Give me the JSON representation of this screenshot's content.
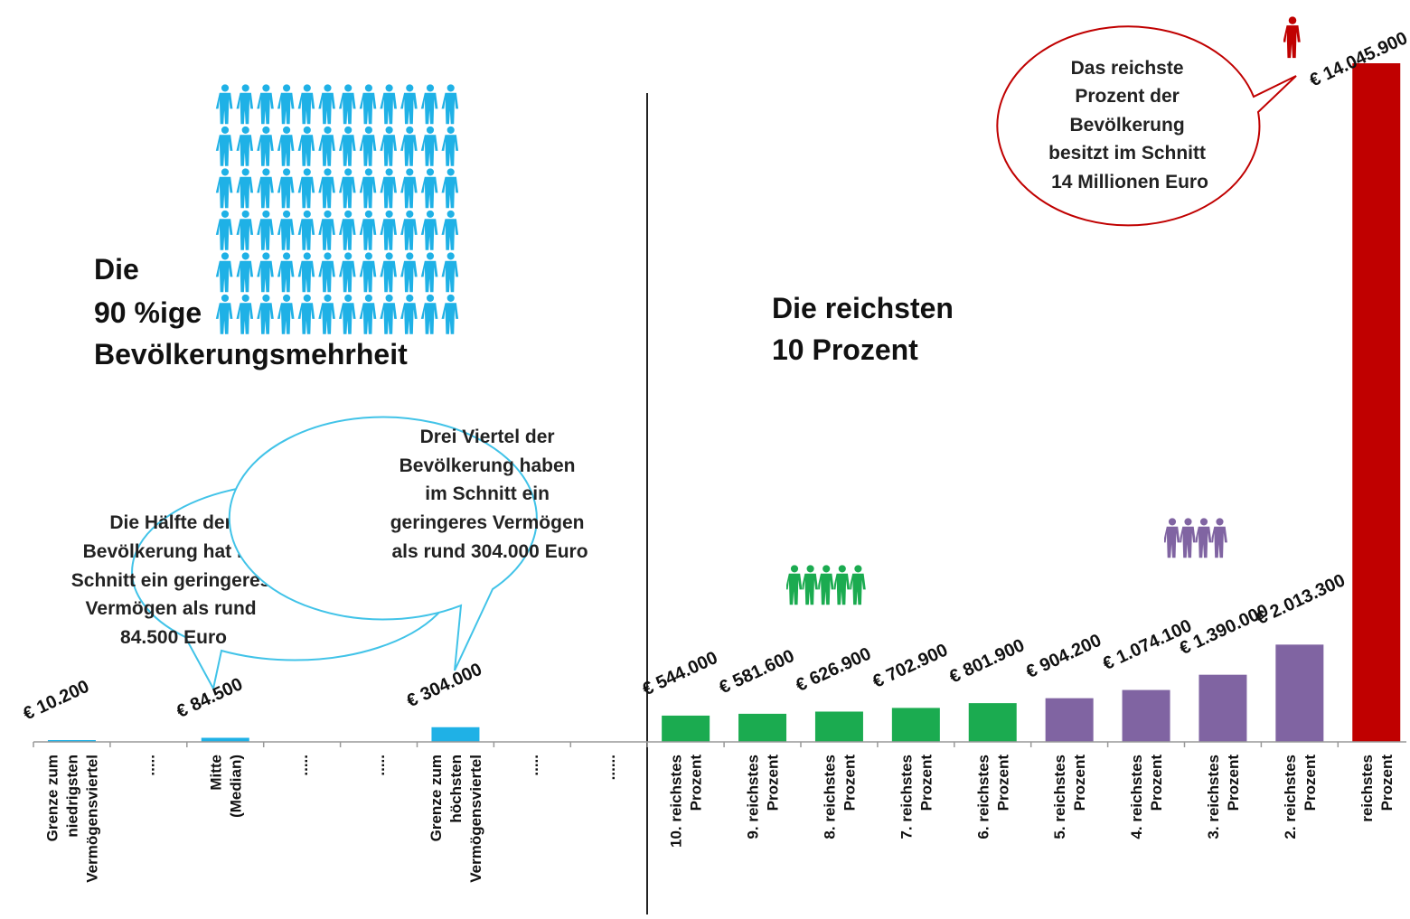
{
  "colors": {
    "majority": "#1fb1e6",
    "top10": "#1bab50",
    "top5": "#8064a2",
    "top1": "#c00000",
    "axis": "#999999",
    "divider": "#222222"
  },
  "headings": {
    "majority": [
      "Die",
      "90 %ige",
      "Bevölkerungsmehrheit"
    ],
    "top10": [
      "Die reichsten",
      "10 Prozent"
    ]
  },
  "bubbles": {
    "half": [
      "Die Hälfte der",
      "Bevölkerung hat im",
      "Schnitt ein geringeres",
      "Vermögen als rund",
      "84.500 Euro"
    ],
    "three_quarters": [
      "Drei Viertel der",
      "Bevölkerung haben",
      "im Schnitt ein",
      "geringeres Vermögen",
      "als rund 304.000 Euro"
    ],
    "top1": [
      "Das reichste",
      "Prozent der",
      "Bevölkerung",
      "besitzt im Schnitt",
      "14 Millionen Euro"
    ]
  },
  "icons": {
    "majority": "person-icon",
    "top10": "person-icon",
    "top5": "person-icon",
    "top1": "person-icon"
  },
  "chart_data": {
    "type": "bar",
    "title": "",
    "xlabel": "",
    "ylabel": "",
    "ylim": [
      0,
      14045900
    ],
    "grid": false,
    "legend": "none",
    "categories": [
      [
        "Grenze zum",
        "niedrigsten",
        "Vermögensviertel"
      ],
      [
        "....."
      ],
      [
        "Mitte",
        "(Median)"
      ],
      [
        "....."
      ],
      [
        "....."
      ],
      [
        "Grenze zum",
        "höchsten",
        "Vermögensviertel"
      ],
      [
        "....."
      ],
      [
        "......"
      ],
      [
        "10. reichstes",
        "Prozent"
      ],
      [
        "9. reichstes",
        "Prozent"
      ],
      [
        "8. reichstes",
        "Prozent"
      ],
      [
        "7. reichstes",
        "Prozent"
      ],
      [
        "6. reichstes",
        "Prozent"
      ],
      [
        "5. reichstes",
        "Prozent"
      ],
      [
        "4. reichstes",
        "Prozent"
      ],
      [
        "3. reichstes",
        "Prozent"
      ],
      [
        "2. reichstes",
        "Prozent"
      ],
      [
        "reichstes",
        "Prozent"
      ]
    ],
    "values": [
      10200,
      null,
      84500,
      null,
      null,
      304000,
      null,
      null,
      544000,
      581600,
      626900,
      702900,
      801900,
      904200,
      1074100,
      1390000,
      2013300,
      14045900
    ],
    "labels": [
      "€ 10.200",
      "",
      "€ 84.500",
      "",
      "",
      "€ 304.000",
      "",
      "",
      "€ 544.000",
      "€ 581.600",
      "€ 626.900",
      "€ 702.900",
      "€ 801.900",
      "€ 904.200",
      "€ 1.074.100",
      "€ 1.390.000",
      "€ 2.013.300",
      "€ 14.045.900"
    ],
    "groups": [
      "majority",
      "majority",
      "majority",
      "majority",
      "majority",
      "majority",
      "majority",
      "majority",
      "top10",
      "top10",
      "top10",
      "top10",
      "top10",
      "top5",
      "top5",
      "top5",
      "top5",
      "top1"
    ]
  }
}
